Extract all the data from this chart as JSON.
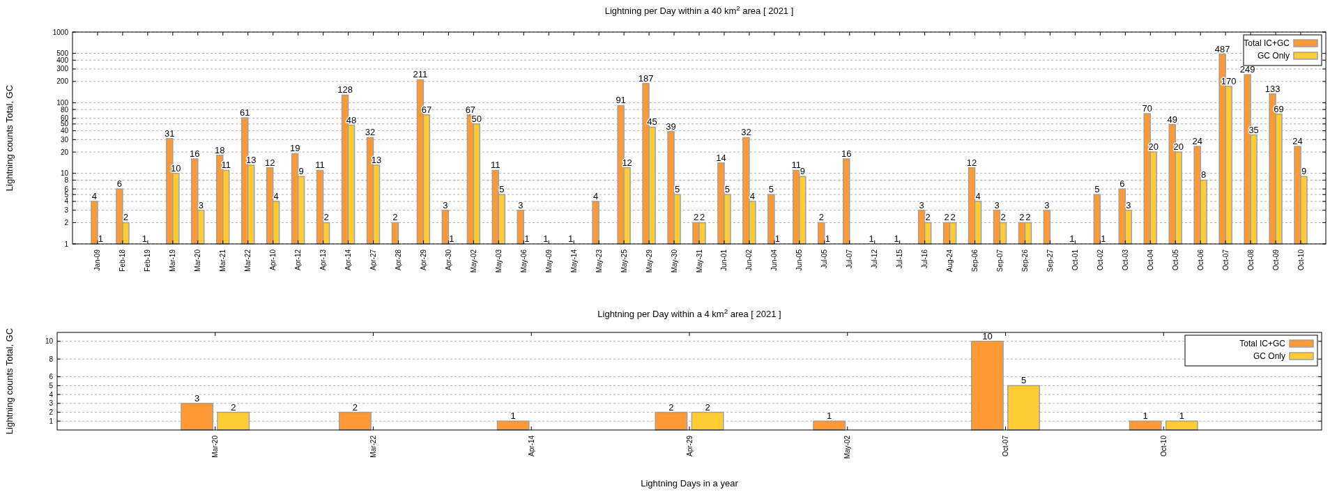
{
  "chart_data": [
    {
      "type": "bar",
      "title": "Lightning per Day within a 40 km$^{2}$ area [ 2021 ]",
      "ylabel": "Lightning counts Total, GC",
      "categories": [
        "Jan-09",
        "Feb-18",
        "Feb-19",
        "Mar-19",
        "Mar-20",
        "Mar-21",
        "Mar-22",
        "Apr-10",
        "Apr-12",
        "Apr-13",
        "Apr-14",
        "Apr-27",
        "Apr-28",
        "Apr-29",
        "Apr-30",
        "May-02",
        "May-03",
        "May-06",
        "May-09",
        "May-14",
        "May-23",
        "May-25",
        "May-29",
        "May-30",
        "May-31",
        "Jun-01",
        "Jun-02",
        "Jun-04",
        "Jun-05",
        "Jul-05",
        "Jul-07",
        "Jul-12",
        "Jul-15",
        "Jul-16",
        "Aug-24",
        "Sep-06",
        "Sep-07",
        "Sep-26",
        "Sep-27",
        "Oct-01",
        "Oct-02",
        "Oct-03",
        "Oct-04",
        "Oct-05",
        "Oct-06",
        "Oct-07",
        "Oct-08",
        "Oct-09",
        "Oct-10"
      ],
      "series": [
        {
          "name": "Total IC+GC",
          "color": "#ff9933",
          "values": [
            4,
            6,
            1,
            31,
            16,
            18,
            61,
            12,
            19,
            11,
            128,
            32,
            2,
            211,
            3,
            67,
            11,
            3,
            1,
            1,
            4,
            91,
            187,
            39,
            2,
            14,
            32,
            5,
            11,
            2,
            16,
            1,
            1,
            3,
            2,
            12,
            3,
            2,
            3,
            1,
            5,
            6,
            70,
            49,
            24,
            487,
            249,
            133,
            24
          ]
        },
        {
          "name": "GC Only",
          "color": "#ffcc33",
          "values": [
            1,
            2,
            null,
            10,
            3,
            11,
            13,
            4,
            9,
            2,
            48,
            13,
            null,
            67,
            1,
            50,
            5,
            1,
            null,
            null,
            null,
            12,
            45,
            5,
            2,
            5,
            4,
            1,
            9,
            1,
            null,
            null,
            null,
            2,
            2,
            4,
            2,
            2,
            null,
            null,
            1,
            3,
            20,
            20,
            8,
            170,
            35,
            69,
            9
          ]
        }
      ],
      "log": true,
      "ylim": [
        1,
        1000
      ],
      "yticks": [
        1,
        2,
        3,
        4,
        5,
        6,
        8,
        10,
        20,
        30,
        40,
        50,
        60,
        80,
        100,
        200,
        300,
        400,
        500,
        1000
      ],
      "grid": "y",
      "legend": "top right",
      "data_labels": true
    },
    {
      "type": "bar",
      "title": "Lightning per Day within a 4 km$^{2}$ area [ 2021 ]",
      "ylabel": "Lightning counts Total, GC",
      "xlabel": "Lightning Days in a year",
      "categories": [
        "Mar-20",
        "Mar-22",
        "Apr-14",
        "Apr-29",
        "May-02",
        "Oct-07",
        "Oct-10"
      ],
      "series": [
        {
          "name": "Total IC+GC",
          "color": "#ff9933",
          "values": [
            3,
            2,
            1,
            2,
            1,
            10,
            1
          ]
        },
        {
          "name": "GC Only",
          "color": "#ffcc33",
          "values": [
            2,
            null,
            null,
            2,
            null,
            5,
            1
          ]
        }
      ],
      "ylim": [
        0,
        11
      ],
      "yticks": [
        1,
        2,
        3,
        4,
        5,
        6,
        8,
        10
      ],
      "grid": "y",
      "legend": "top right",
      "data_labels": true
    }
  ]
}
